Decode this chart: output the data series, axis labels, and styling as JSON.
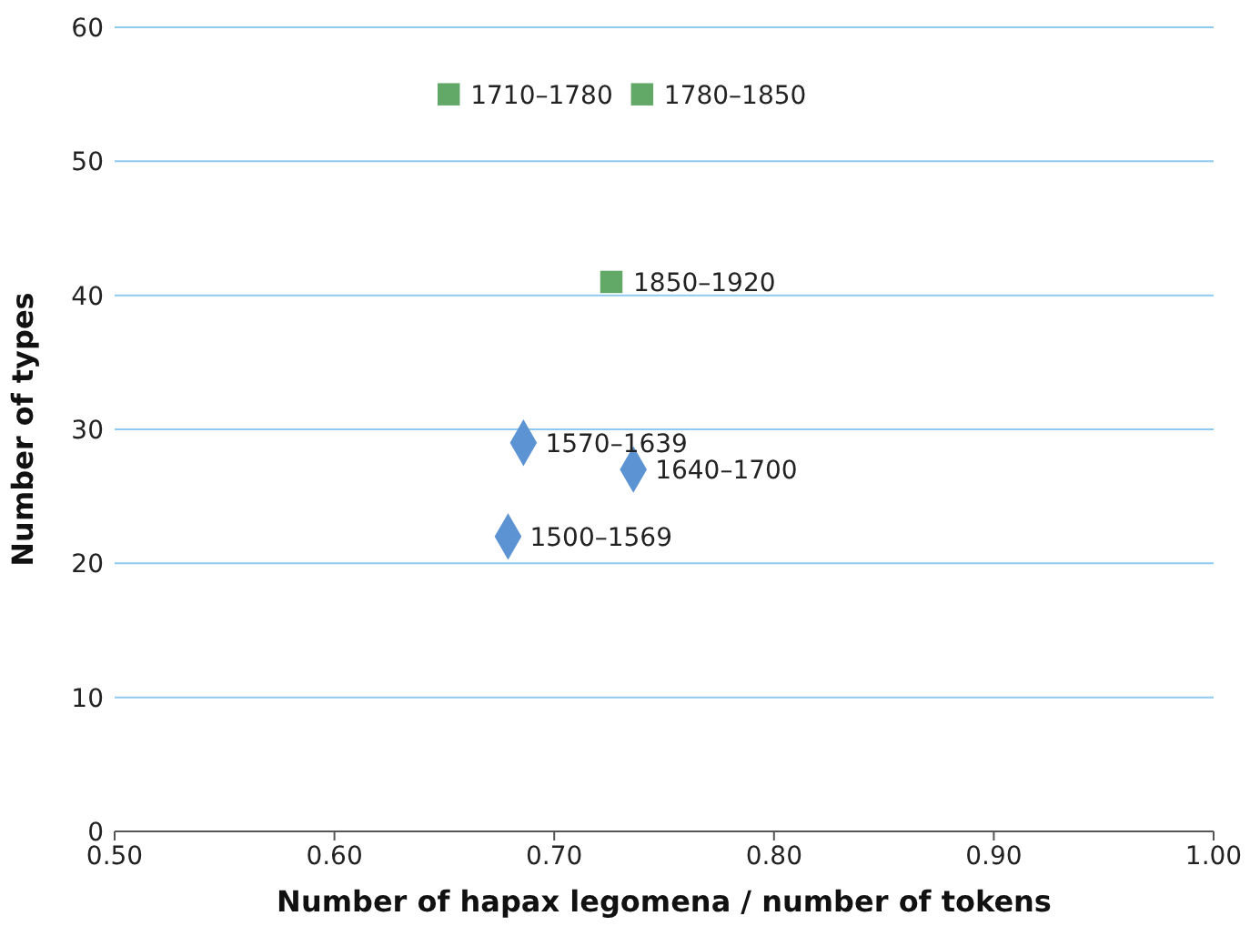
{
  "chart_data": {
    "type": "scatter",
    "xlabel": "Number of hapax legomena / number of tokens",
    "ylabel": "Number of types",
    "xlim": [
      0.5,
      1.0
    ],
    "xticks": [
      {
        "value": 0.5,
        "label": "0.50"
      },
      {
        "value": 0.6,
        "label": "0.60"
      },
      {
        "value": 0.7,
        "label": "0.70"
      },
      {
        "value": 0.8,
        "label": "0.80"
      },
      {
        "value": 0.9,
        "label": "0.90"
      },
      {
        "value": 1.0,
        "label": "1.00"
      }
    ],
    "ylim": [
      0,
      60
    ],
    "yticks": [
      0,
      10,
      20,
      30,
      40,
      50,
      60
    ],
    "grid": "y",
    "series": [
      {
        "color": "#5b93d3",
        "marker": "diamond",
        "x": [
          0.679,
          0.686,
          0.736
        ],
        "values": [
          22,
          29,
          27
        ]
      },
      {
        "color": "#62a866",
        "marker": "square",
        "x": [
          0.652,
          0.74,
          0.726
        ],
        "values": [
          55,
          55,
          41
        ]
      }
    ],
    "annotations": [
      {
        "text": "1500–1569",
        "x": 0.679,
        "y": 22
      },
      {
        "text": "1570–1639",
        "x": 0.686,
        "y": 29
      },
      {
        "text": "1640–1700",
        "x": 0.736,
        "y": 27
      },
      {
        "text": "1710–1780",
        "x": 0.652,
        "y": 55
      },
      {
        "text": "1780–1850",
        "x": 0.74,
        "y": 55
      },
      {
        "text": "1850–1920",
        "x": 0.726,
        "y": 41
      }
    ]
  }
}
